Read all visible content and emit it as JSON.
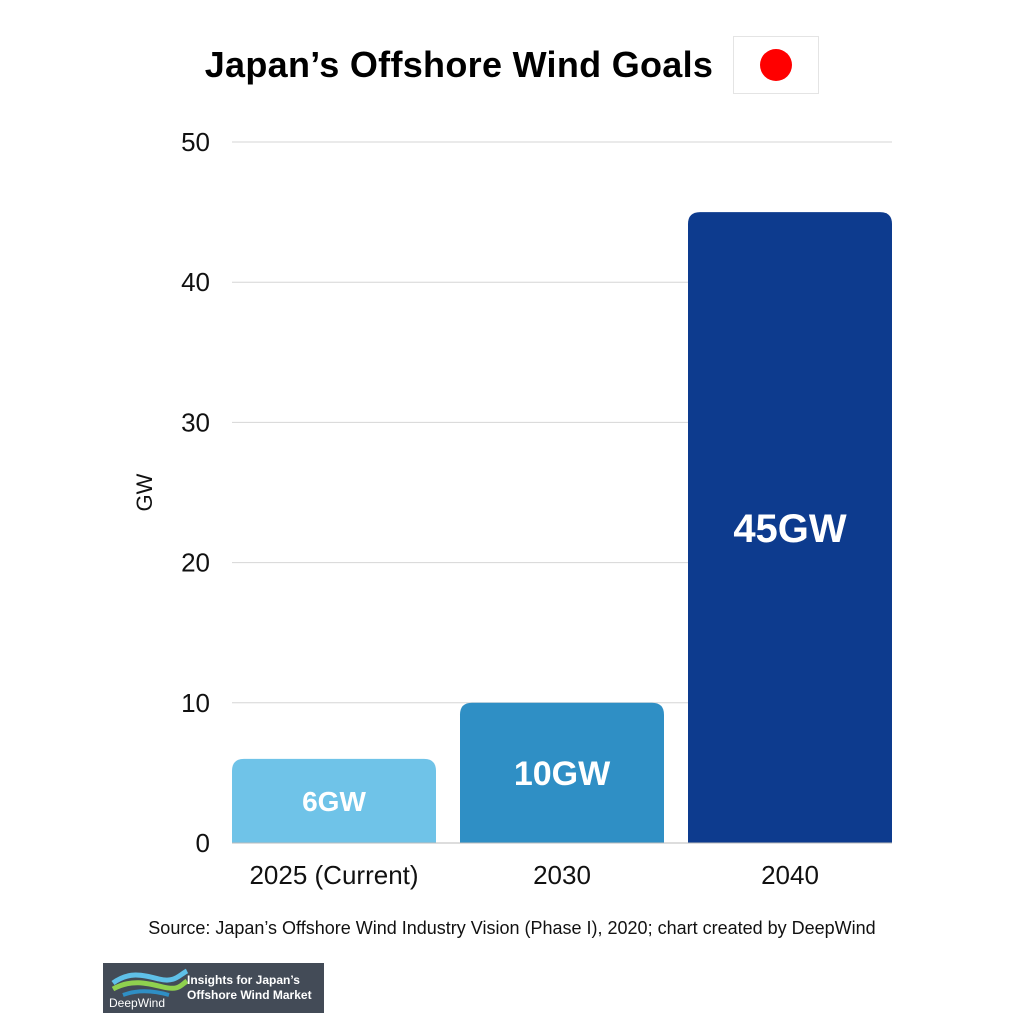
{
  "title": "Japan’s Offshore Wind Goals",
  "flag_icon": "japan-flag",
  "source": "Source: Japan’s Offshore Wind Industry Vision (Phase I), 2020; chart created by DeepWind",
  "logo": {
    "name": "DeepWind",
    "tagline_1": "Insights for Japan’s",
    "tagline_2": "Offshore Wind Market"
  },
  "chart_data": {
    "type": "bar",
    "categories": [
      "2025 (Current)",
      "2030",
      "2040"
    ],
    "values": [
      6,
      10,
      45
    ],
    "data_labels": [
      "6GW",
      "10GW",
      "45GW"
    ],
    "colors": [
      "#6fc3e8",
      "#2f8fc5",
      "#0d3b8e"
    ],
    "ylabel": "GW",
    "ylim": [
      0,
      50
    ],
    "yticks": [
      0,
      10,
      20,
      30,
      40,
      50
    ],
    "grid": true
  }
}
